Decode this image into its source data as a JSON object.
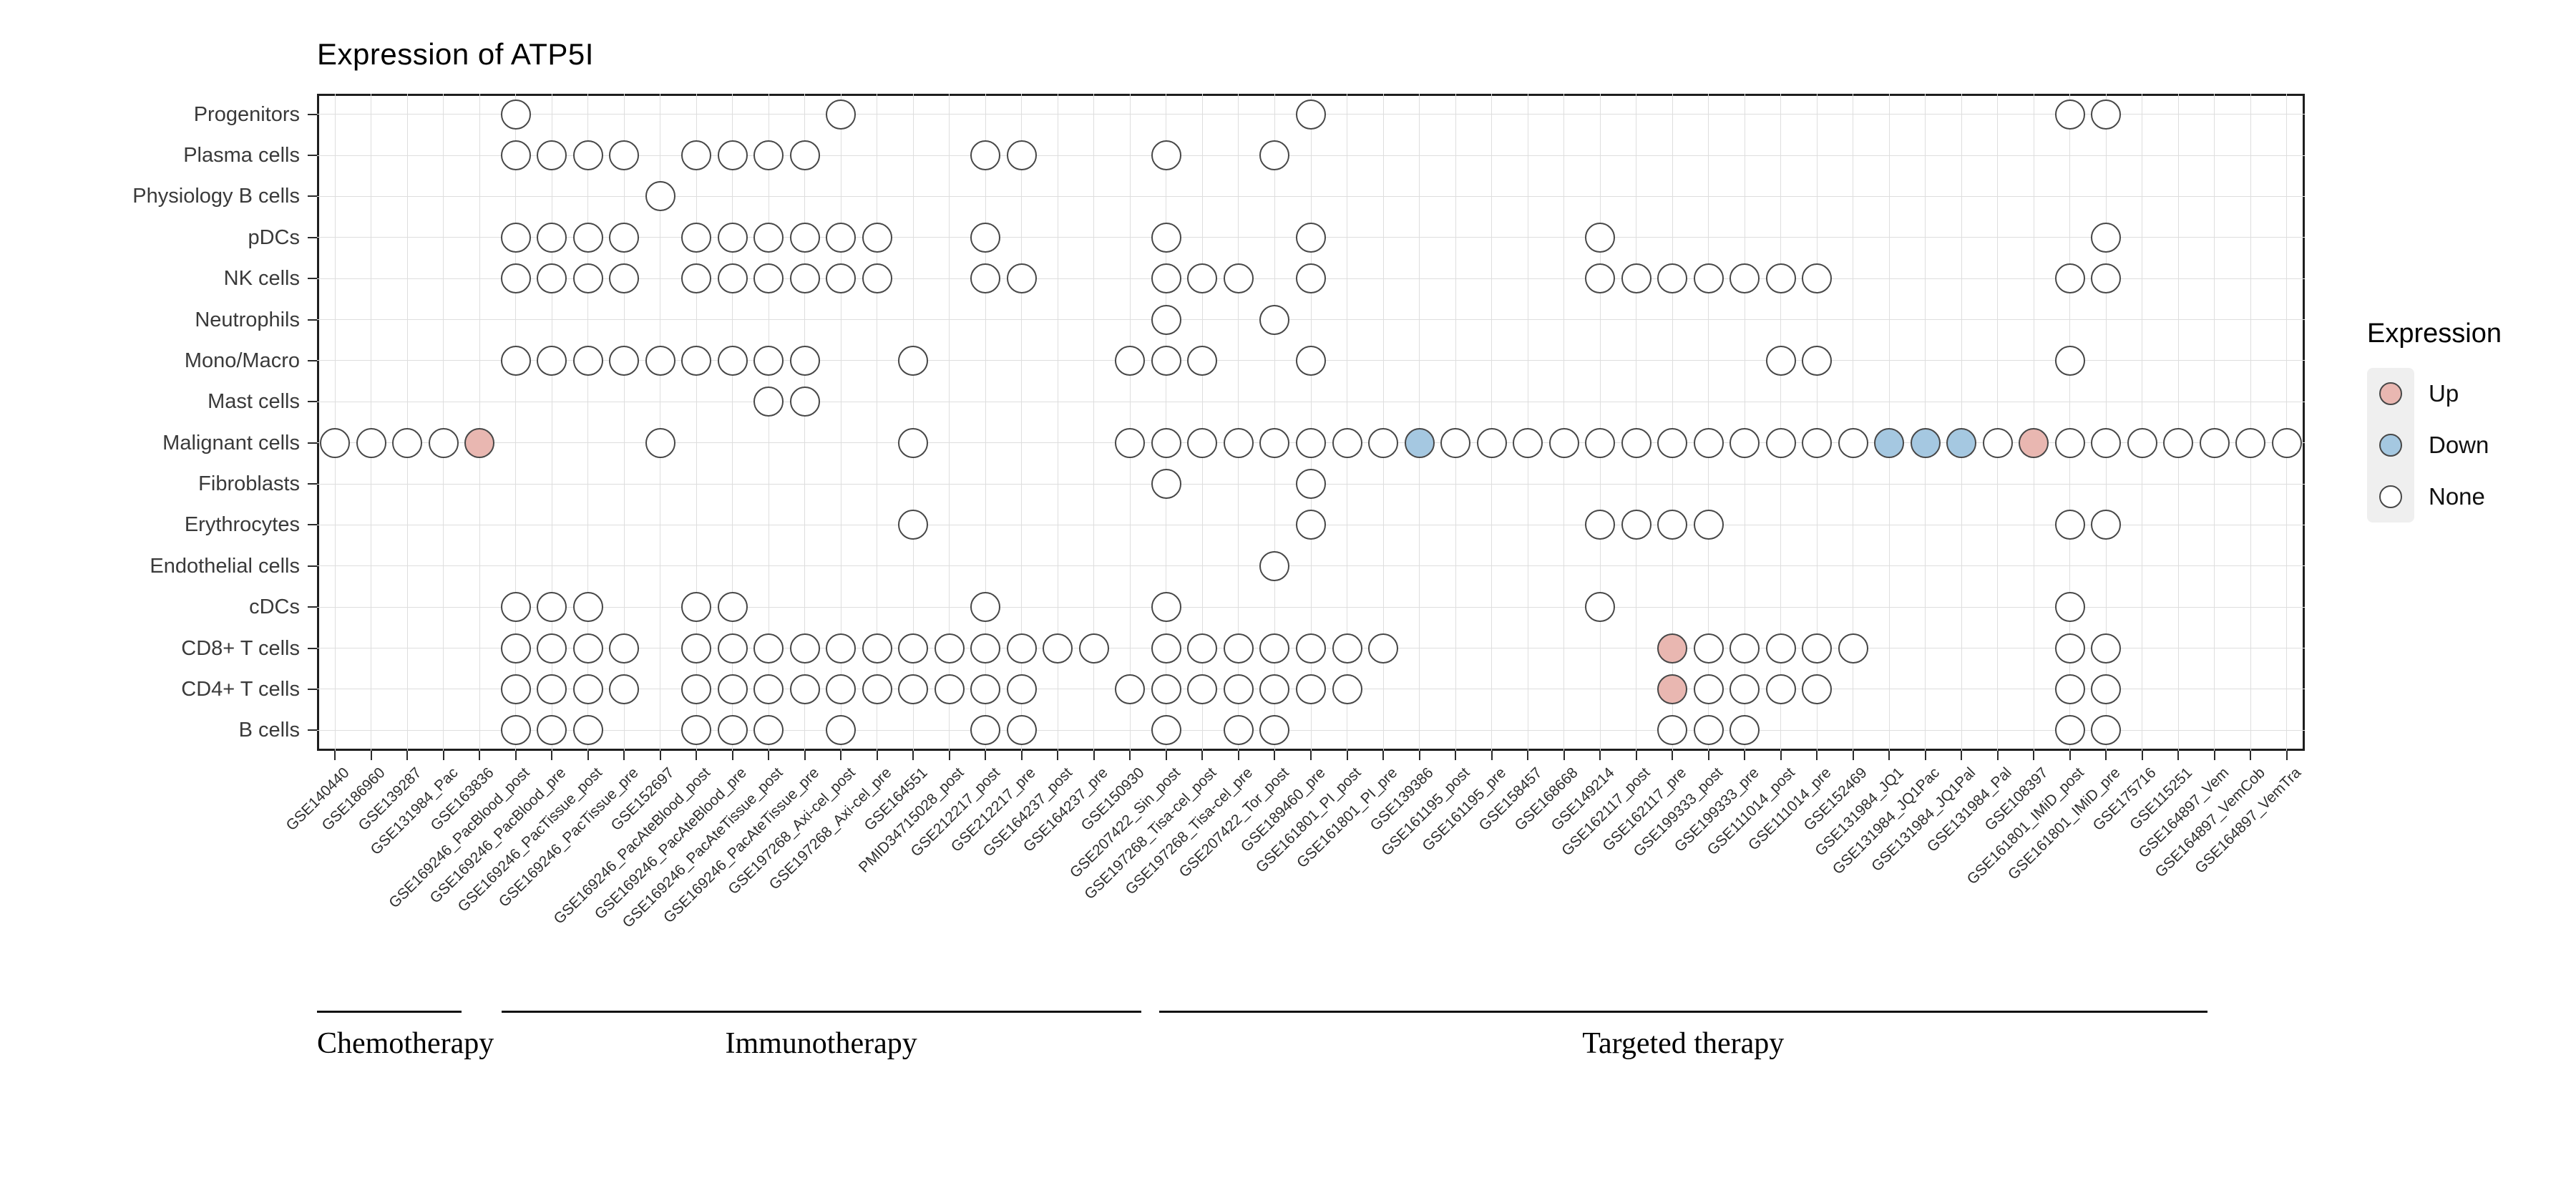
{
  "title": "Expression of ATP5I",
  "legend": {
    "title": "Expression",
    "items": [
      {
        "label": "Up",
        "color": "#e9b7b1"
      },
      {
        "label": "Down",
        "color": "#a5c8e1"
      },
      {
        "label": "None",
        "color": "#ffffff"
      }
    ]
  },
  "chart_data": {
    "type": "scatter",
    "subtype": "dot-matrix",
    "title": "Expression of ATP5I",
    "xlabel": "",
    "ylabel": "",
    "grid": true,
    "legend_position": "right",
    "rows": [
      "Progenitors",
      "Plasma cells",
      "Physiology B cells",
      "pDCs",
      "NK cells",
      "Neutrophils",
      "Mono/Macro",
      "Mast cells",
      "Malignant cells",
      "Fibroblasts",
      "Erythrocytes",
      "Endothelial cells",
      "cDCs",
      "CD8+ T cells",
      "CD4+ T cells",
      "B cells"
    ],
    "columns": [
      "GSE140440",
      "GSE186960",
      "GSE139287",
      "GSE131984_Pac",
      "GSE163836",
      "GSE169246_PacBlood_post",
      "GSE169246_PacBlood_pre",
      "GSE169246_PacTissue_post",
      "GSE169246_PacTissue_pre",
      "GSE152697",
      "GSE169246_PacAteBlood_post",
      "GSE169246_PacAteBlood_pre",
      "GSE169246_PacAteTissue_post",
      "GSE169246_PacAteTissue_pre",
      "GSE197268_Axi-cel_post",
      "GSE197268_Axi-cel_pre",
      "GSE164551",
      "PMID34715028_post",
      "GSE212217_post",
      "GSE212217_pre",
      "GSE164237_post",
      "GSE164237_pre",
      "GSE150930",
      "GSE207422_Sin_post",
      "GSE197268_Tisa-cel_post",
      "GSE197268_Tisa-cel_pre",
      "GSE207422_Tor_post",
      "GSE189460_pre",
      "GSE161801_PI_post",
      "GSE161801_PI_pre",
      "GSE139386",
      "GSE161195_post",
      "GSE161195_pre",
      "GSE158457",
      "GSE168668",
      "GSE149214",
      "GSE162117_post",
      "GSE162117_pre",
      "GSE199333_post",
      "GSE199333_pre",
      "GSE111014_post",
      "GSE111014_pre",
      "GSE152469",
      "GSE131984_JQ1",
      "GSE131984_JQ1Pac",
      "GSE131984_JQ1Pal",
      "GSE131984_Pal",
      "GSE108397",
      "GSE161801_IMiD_post",
      "GSE161801_IMiD_pre",
      "GSE175716",
      "GSE115251",
      "GSE164897_Vem",
      "GSE164897_VemCob",
      "GSE164897_VemTra"
    ],
    "colors": {
      "up": "#e9b7b1",
      "down": "#a5c8e1",
      "none": "#ffffff",
      "outline": "#474747"
    },
    "dots": {
      "Progenitors": {
        "none": [
          6,
          15,
          28,
          49,
          50
        ],
        "up": [],
        "down": []
      },
      "Plasma cells": {
        "none": [
          6,
          7,
          8,
          9,
          11,
          12,
          13,
          14,
          19,
          20,
          24,
          27
        ],
        "up": [],
        "down": []
      },
      "Physiology B cells": {
        "none": [
          10
        ],
        "up": [],
        "down": []
      },
      "pDCs": {
        "none": [
          6,
          7,
          8,
          9,
          11,
          12,
          13,
          14,
          15,
          16,
          19,
          24,
          28,
          36,
          50
        ],
        "up": [],
        "down": []
      },
      "NK cells": {
        "none": [
          6,
          7,
          8,
          9,
          11,
          12,
          13,
          14,
          15,
          16,
          19,
          20,
          24,
          25,
          26,
          28,
          36,
          37,
          38,
          39,
          40,
          41,
          42,
          49,
          50
        ],
        "up": [],
        "down": []
      },
      "Neutrophils": {
        "none": [
          24,
          27
        ],
        "up": [],
        "down": []
      },
      "Mono/Macro": {
        "none": [
          6,
          7,
          8,
          9,
          10,
          11,
          12,
          13,
          14,
          17,
          23,
          24,
          25,
          28,
          41,
          42,
          49
        ],
        "up": [],
        "down": []
      },
      "Mast cells": {
        "none": [
          13,
          14
        ],
        "up": [],
        "down": []
      },
      "Malignant cells": {
        "none": [
          1,
          2,
          3,
          4,
          10,
          17,
          23,
          24,
          25,
          26,
          27,
          28,
          29,
          30,
          32,
          33,
          34,
          35,
          36,
          37,
          38,
          39,
          40,
          41,
          42,
          43,
          47,
          49,
          50,
          51,
          52,
          53,
          54,
          55
        ],
        "up": [
          5,
          48
        ],
        "down": [
          31,
          44,
          45,
          46
        ]
      },
      "Fibroblasts": {
        "none": [
          24,
          28
        ],
        "up": [],
        "down": []
      },
      "Erythrocytes": {
        "none": [
          17,
          28,
          36,
          37,
          38,
          39,
          49,
          50
        ],
        "up": [],
        "down": []
      },
      "Endothelial cells": {
        "none": [
          27
        ],
        "up": [],
        "down": []
      },
      "cDCs": {
        "none": [
          6,
          7,
          8,
          11,
          12,
          19,
          24,
          36,
          49
        ],
        "up": [],
        "down": []
      },
      "CD8+ T cells": {
        "none": [
          6,
          7,
          8,
          9,
          11,
          12,
          13,
          14,
          15,
          16,
          17,
          18,
          19,
          20,
          21,
          22,
          24,
          25,
          26,
          27,
          28,
          29,
          30,
          39,
          40,
          41,
          42,
          43,
          49,
          50
        ],
        "up": [
          38
        ],
        "down": []
      },
      "CD4+ T cells": {
        "none": [
          6,
          7,
          8,
          9,
          11,
          12,
          13,
          14,
          15,
          16,
          17,
          18,
          19,
          20,
          23,
          24,
          25,
          26,
          27,
          28,
          29,
          39,
          40,
          41,
          42,
          49,
          50
        ],
        "up": [
          38
        ],
        "down": []
      },
      "B cells": {
        "none": [
          6,
          7,
          8,
          11,
          12,
          13,
          15,
          19,
          20,
          24,
          26,
          27,
          38,
          39,
          40,
          49,
          50
        ],
        "up": [],
        "down": []
      }
    },
    "groups": [
      {
        "label": "Chemotherapy",
        "from_col": 0.0,
        "to_col": 4.0
      },
      {
        "label": "Immunotherapy",
        "from_col": 5.1,
        "to_col": 22.8
      },
      {
        "label": "Targeted therapy",
        "from_col": 23.3,
        "to_col": 52.3
      }
    ]
  }
}
